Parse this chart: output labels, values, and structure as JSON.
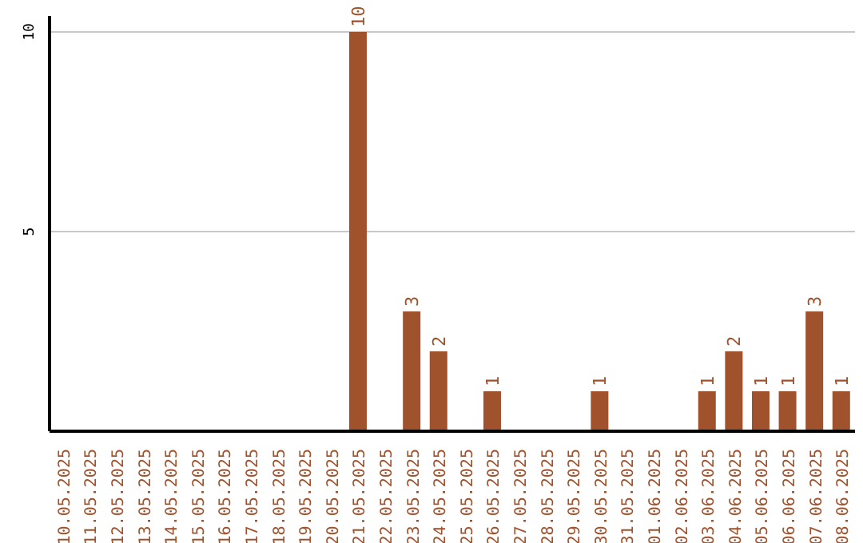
{
  "chart_data": {
    "type": "bar",
    "categories": [
      "10.05.2025",
      "11.05.2025",
      "12.05.2025",
      "13.05.2025",
      "14.05.2025",
      "15.05.2025",
      "16.05.2025",
      "17.05.2025",
      "18.05.2025",
      "19.05.2025",
      "20.05.2025",
      "21.05.2025",
      "22.05.2025",
      "23.05.2025",
      "24.05.2025",
      "25.05.2025",
      "26.05.2025",
      "27.05.2025",
      "28.05.2025",
      "29.05.2025",
      "30.05.2025",
      "31.05.2025",
      "01.06.2025",
      "02.06.2025",
      "03.06.2025",
      "04.06.2025",
      "05.06.2025",
      "06.06.2025",
      "07.06.2025",
      "08.06.2025"
    ],
    "values": [
      0,
      0,
      0,
      0,
      0,
      0,
      0,
      0,
      0,
      0,
      0,
      10,
      0,
      3,
      2,
      0,
      1,
      0,
      0,
      0,
      1,
      0,
      0,
      0,
      1,
      2,
      1,
      1,
      3,
      1
    ],
    "value_labels": [
      null,
      null,
      null,
      null,
      null,
      null,
      null,
      null,
      null,
      null,
      null,
      "10",
      null,
      "3",
      "2",
      null,
      "1",
      null,
      null,
      null,
      "1",
      null,
      null,
      null,
      "1",
      "2",
      "1",
      "1",
      "3",
      "1"
    ],
    "color": "#a0522d",
    "ylim": [
      0,
      10.4
    ],
    "yticks": [
      5,
      10
    ],
    "grid": "y"
  }
}
